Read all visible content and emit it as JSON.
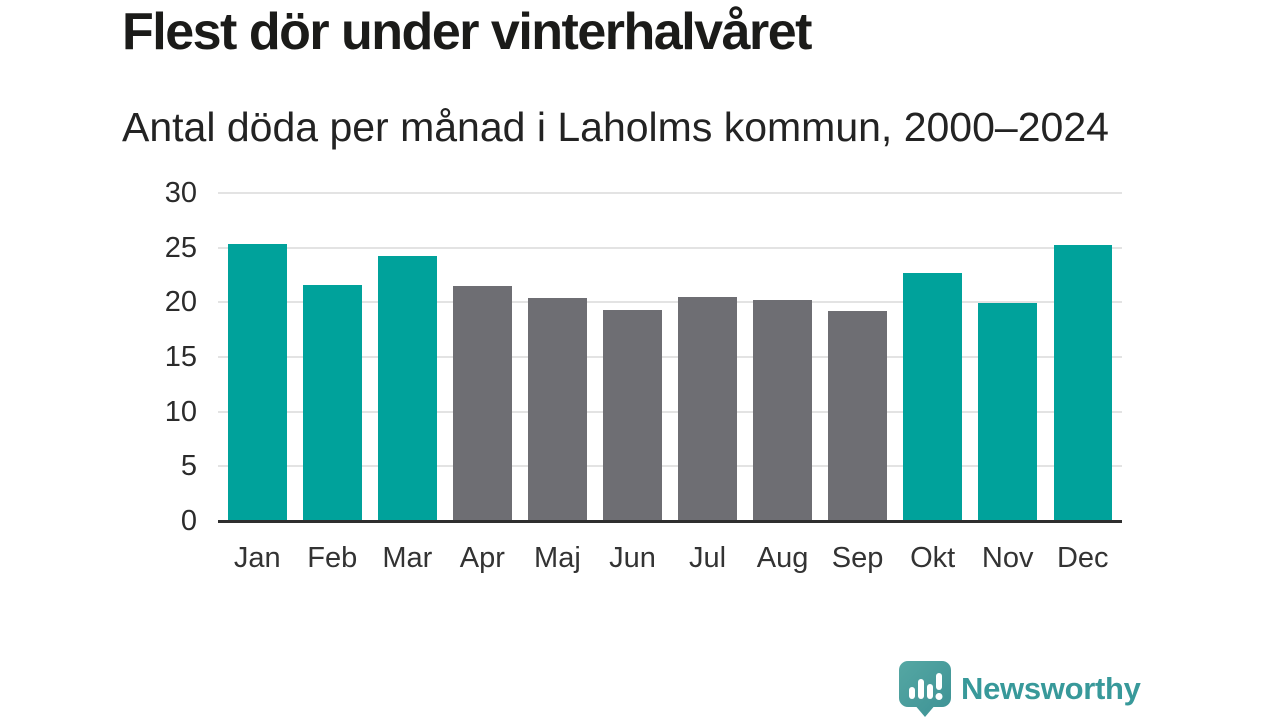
{
  "chart_data": {
    "type": "bar",
    "title": "Flest dör under vinterhalvåret",
    "subtitle": "Antal döda per månad i Laholms kommun, 2000–2024",
    "categories": [
      "Jan",
      "Feb",
      "Mar",
      "Apr",
      "Maj",
      "Jun",
      "Jul",
      "Aug",
      "Sep",
      "Okt",
      "Nov",
      "Dec"
    ],
    "values": [
      25.3,
      21.6,
      24.2,
      21.5,
      20.4,
      19.3,
      20.5,
      20.2,
      19.2,
      22.7,
      19.9,
      25.2
    ],
    "bar_groups": [
      "winter",
      "winter",
      "winter",
      "summer",
      "summer",
      "summer",
      "summer",
      "summer",
      "summer",
      "winter",
      "winter",
      "winter"
    ],
    "group_colors": {
      "winter": "#00a29b",
      "summer": "#6e6e73"
    },
    "ylim": [
      0,
      30
    ],
    "yticks": [
      0,
      5,
      10,
      15,
      20,
      25,
      30
    ],
    "grid": true,
    "legend": false,
    "xlabel": "",
    "ylabel": "",
    "gridline_color": "#e3e3e3",
    "baseline_color": "#2f2f2f"
  },
  "branding": {
    "logo_text": "Newsworthy",
    "logo_icon": "speech-bubble-bar-chart-exclamation-icon",
    "logo_text_color": "#38999a",
    "logo_icon_color_top": "#55a7a3",
    "logo_icon_color_bottom": "#3d9295"
  }
}
